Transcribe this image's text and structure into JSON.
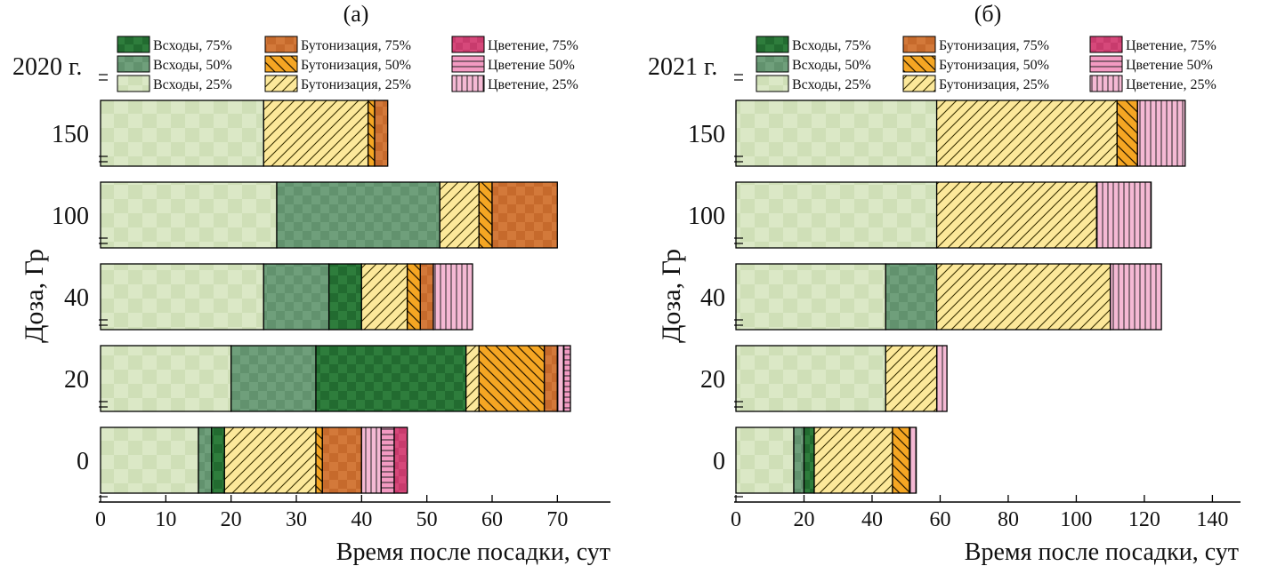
{
  "chart_data": [
    {
      "type": "bar",
      "orientation": "horizontal",
      "stacked": true,
      "panel_label": "(а)",
      "year_label": "2020 г.",
      "title": "",
      "xlabel": "Время после посадки, сут",
      "ylabel": "Доза, Гр",
      "xlim": [
        0,
        78
      ],
      "xticks": [
        0,
        10,
        20,
        30,
        40,
        50,
        60,
        70
      ],
      "categories": [
        "0",
        "20",
        "40",
        "100",
        "150"
      ],
      "legend": [
        "Всходы, 75%",
        "Бутонизация, 75%",
        "Цветение, 75%",
        "Всходы, 50%",
        "Бутонизация, 50%",
        "Цветение 50%",
        "Всходы, 25%",
        "Бутонизация, 25%",
        "Цветение, 25%"
      ],
      "bars": [
        {
          "category": "0",
          "segments": [
            [
              "e25",
              0,
              15
            ],
            [
              "e50",
              15,
              17
            ],
            [
              "e75",
              17,
              19
            ],
            [
              "b25",
              19,
              33
            ],
            [
              "b50",
              33,
              34
            ],
            [
              "b75",
              34,
              40
            ],
            [
              "f25",
              40,
              43
            ],
            [
              "f50",
              43,
              45
            ],
            [
              "f75",
              45,
              47
            ]
          ]
        },
        {
          "category": "20",
          "segments": [
            [
              "e25",
              0,
              20
            ],
            [
              "e50",
              20,
              33
            ],
            [
              "e75",
              33,
              56
            ],
            [
              "b25",
              56,
              58
            ],
            [
              "b50",
              58,
              68
            ],
            [
              "b75",
              68,
              70
            ],
            [
              "f25",
              70,
              71
            ],
            [
              "f50",
              71,
              72
            ]
          ]
        },
        {
          "category": "40",
          "segments": [
            [
              "e25",
              0,
              25
            ],
            [
              "e50",
              25,
              35
            ],
            [
              "e75",
              35,
              40
            ],
            [
              "b25",
              40,
              47
            ],
            [
              "b50",
              47,
              49
            ],
            [
              "b75",
              49,
              51
            ],
            [
              "f25",
              51,
              57
            ]
          ]
        },
        {
          "category": "100",
          "segments": [
            [
              "e25",
              0,
              27
            ],
            [
              "e50",
              27,
              52
            ],
            [
              "b25",
              52,
              58
            ],
            [
              "b50",
              58,
              60
            ],
            [
              "b75",
              60,
              70
            ]
          ]
        },
        {
          "category": "150",
          "segments": [
            [
              "e25",
              0,
              25
            ],
            [
              "b25",
              25,
              41
            ],
            [
              "b50",
              41,
              42
            ],
            [
              "b75",
              42,
              44
            ]
          ]
        }
      ]
    },
    {
      "type": "bar",
      "orientation": "horizontal",
      "stacked": true,
      "panel_label": "(б)",
      "year_label": "2021 г.",
      "title": "",
      "xlabel": "Время после посадки, сут",
      "ylabel": "Доза, Гр",
      "xlim": [
        0,
        148
      ],
      "xticks": [
        0,
        20,
        40,
        60,
        80,
        100,
        120,
        140
      ],
      "categories": [
        "0",
        "20",
        "40",
        "100",
        "150"
      ],
      "legend": [
        "Всходы, 75%",
        "Бутонизация, 75%",
        "Цветение, 75%",
        "Всходы, 50%",
        "Бутонизация, 50%",
        "Цветение 50%",
        "Всходы, 25%",
        "Бутонизация, 25%",
        "Цветение, 25%"
      ],
      "bars": [
        {
          "category": "0",
          "segments": [
            [
              "e25",
              0,
              17
            ],
            [
              "e50",
              17,
              20
            ],
            [
              "e75",
              20,
              23
            ],
            [
              "b25",
              23,
              46
            ],
            [
              "b50",
              46,
              51
            ],
            [
              "f25",
              51,
              53
            ]
          ]
        },
        {
          "category": "20",
          "segments": [
            [
              "e25",
              0,
              44
            ],
            [
              "b25",
              44,
              59
            ],
            [
              "f25",
              59,
              62
            ]
          ]
        },
        {
          "category": "40",
          "segments": [
            [
              "e25",
              0,
              44
            ],
            [
              "e50",
              44,
              59
            ],
            [
              "b25",
              59,
              110
            ],
            [
              "f25",
              110,
              125
            ]
          ]
        },
        {
          "category": "100",
          "segments": [
            [
              "e25",
              0,
              59
            ],
            [
              "b25",
              59,
              106
            ],
            [
              "f25",
              106,
              122
            ]
          ]
        },
        {
          "category": "150",
          "segments": [
            [
              "e25",
              0,
              59
            ],
            [
              "b25",
              59,
              112
            ],
            [
              "b50",
              112,
              118
            ],
            [
              "f25",
              118,
              132
            ]
          ]
        }
      ]
    }
  ],
  "series_styles": {
    "e75": {
      "color": "#2e7d3c",
      "pattern": "checker"
    },
    "e50": {
      "color": "#6f9f7b",
      "pattern": "checker"
    },
    "e25": {
      "color": "#dbe8c6",
      "pattern": "checker"
    },
    "b75": {
      "color": "#d3793a",
      "pattern": "checker"
    },
    "b50": {
      "color": "#f5a623",
      "pattern": "hatch-back"
    },
    "b25": {
      "color": "#fce89a",
      "pattern": "hatch-forward"
    },
    "f75": {
      "color": "#d6487a",
      "pattern": "checker"
    },
    "f50": {
      "color": "#f39ac2",
      "pattern": "horizontal-lines"
    },
    "f25": {
      "color": "#f5b9d4",
      "pattern": "vertical-lines"
    }
  },
  "legend_keys": [
    "e75",
    "b75",
    "f75",
    "e50",
    "b50",
    "f50",
    "e25",
    "b25",
    "f25"
  ]
}
